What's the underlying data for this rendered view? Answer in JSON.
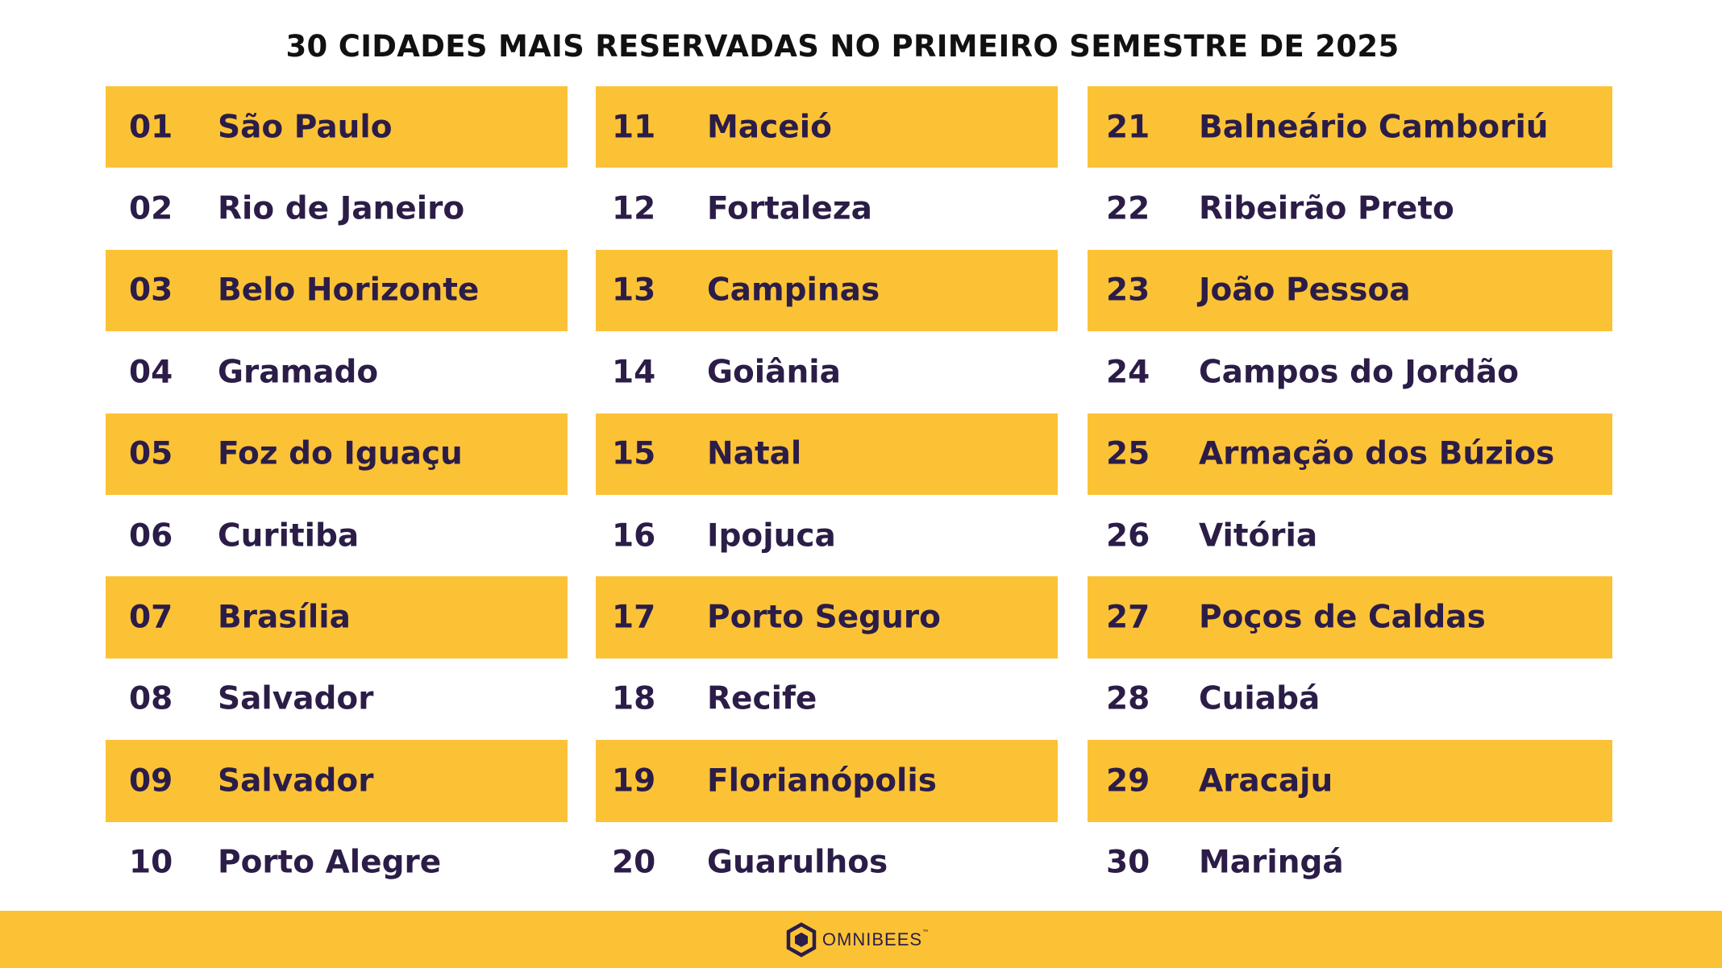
{
  "title": "30 CIDADES MAIS RESERVADAS NO PRIMEIRO SEMESTRE DE 2025",
  "colors": {
    "accent": "#fcc236",
    "text": "#2b1d47"
  },
  "columns": [
    {
      "items": [
        {
          "rank": "01",
          "city": "São Paulo"
        },
        {
          "rank": "02",
          "city": "Rio de Janeiro"
        },
        {
          "rank": "03",
          "city": "Belo Horizonte"
        },
        {
          "rank": "04",
          "city": "Gramado"
        },
        {
          "rank": "05",
          "city": "Foz do Iguaçu"
        },
        {
          "rank": "06",
          "city": "Curitiba"
        },
        {
          "rank": "07",
          "city": "Brasília"
        },
        {
          "rank": "08",
          "city": "Salvador"
        },
        {
          "rank": "09",
          "city": "Salvador"
        },
        {
          "rank": "10",
          "city": "Porto Alegre"
        }
      ]
    },
    {
      "items": [
        {
          "rank": "11",
          "city": "Maceió"
        },
        {
          "rank": "12",
          "city": "Fortaleza"
        },
        {
          "rank": "13",
          "city": "Campinas"
        },
        {
          "rank": "14",
          "city": "Goiânia"
        },
        {
          "rank": "15",
          "city": "Natal"
        },
        {
          "rank": "16",
          "city": "Ipojuca"
        },
        {
          "rank": "17",
          "city": "Porto Seguro"
        },
        {
          "rank": "18",
          "city": "Recife"
        },
        {
          "rank": "19",
          "city": "Florianópolis"
        },
        {
          "rank": "20",
          "city": "Guarulhos"
        }
      ]
    },
    {
      "items": [
        {
          "rank": "21",
          "city": "Balneário Camboriú"
        },
        {
          "rank": "22",
          "city": "Ribeirão Preto"
        },
        {
          "rank": "23",
          "city": "João Pessoa"
        },
        {
          "rank": "24",
          "city": "Campos do Jordão"
        },
        {
          "rank": "25",
          "city": "Armação dos Búzios"
        },
        {
          "rank": "26",
          "city": "Vitória"
        },
        {
          "rank": "27",
          "city": "Poços de Caldas"
        },
        {
          "rank": "28",
          "city": "Cuiabá"
        },
        {
          "rank": "29",
          "city": "Aracaju"
        },
        {
          "rank": "30",
          "city": "Maringá"
        }
      ]
    }
  ],
  "footer": {
    "logo_text": "OMNIBEES",
    "logo_icon": "hexagon-logo-icon",
    "trademark": "™"
  }
}
